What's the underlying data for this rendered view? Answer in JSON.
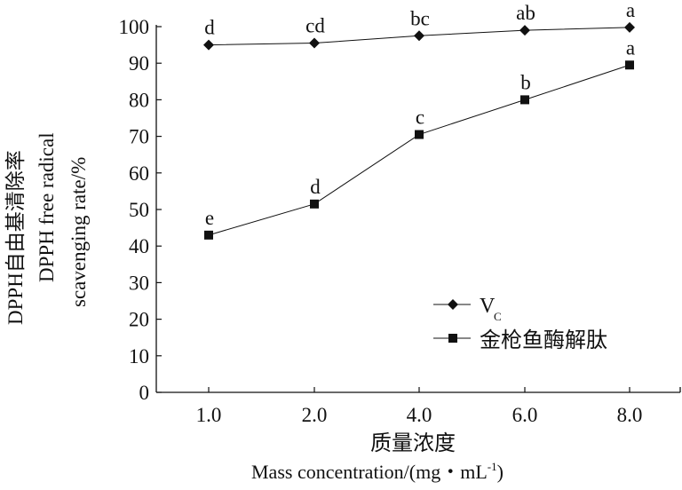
{
  "chart_data": {
    "type": "line",
    "title": "",
    "xlabel_cn": "质量浓度",
    "xlabel_en": "Mass concentration/(mg・mL",
    "xlabel_en_sup": "-1",
    "xlabel_en_end": ")",
    "ylabel_cn": "DPPH自由基清除率",
    "ylabel_en_1": "DPPH free radical",
    "ylabel_en_2": "scavenging rate/%",
    "categories": [
      "1.0",
      "2.0",
      "4.0",
      "6.0",
      "8.0"
    ],
    "ylim": [
      0,
      100
    ],
    "yticks": [
      0,
      10,
      20,
      30,
      40,
      50,
      60,
      70,
      80,
      90,
      100
    ],
    "grid": false,
    "legend_position": "bottom-right",
    "series": [
      {
        "name": "V",
        "name_sub": "C",
        "marker": "diamond",
        "values": [
          95,
          95.5,
          97.5,
          99,
          99.8
        ],
        "labels": [
          "d",
          "cd",
          "bc",
          "ab",
          "a"
        ]
      },
      {
        "name": "金枪鱼酶解肽",
        "marker": "square",
        "values": [
          43,
          51.5,
          70.5,
          80,
          89.5
        ],
        "labels": [
          "e",
          "d",
          "c",
          "b",
          "a"
        ]
      }
    ]
  }
}
